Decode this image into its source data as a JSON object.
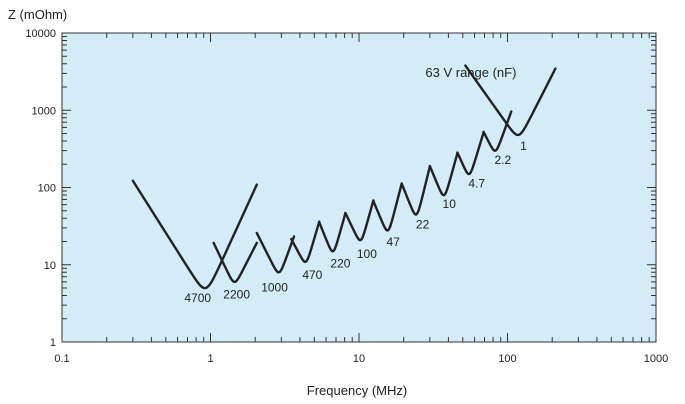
{
  "chart_data": {
    "type": "line",
    "title": "",
    "ylabel": "Z (mOhm)",
    "xlabel": "Frequency (MHz)",
    "annotation": "63 V range (nF)",
    "x_scale": "log",
    "y_scale": "log",
    "xlim": [
      0.1,
      1000
    ],
    "ylim": [
      1,
      10000
    ],
    "x_ticks": [
      {
        "value": 0.1,
        "label": "0.1"
      },
      {
        "value": 1,
        "label": "1"
      },
      {
        "value": 10,
        "label": "10"
      },
      {
        "value": 100,
        "label": "100"
      },
      {
        "value": 1000,
        "label": "1000"
      }
    ],
    "y_ticks": [
      {
        "value": 1,
        "label": "1"
      },
      {
        "value": 10,
        "label": "10"
      },
      {
        "value": 100,
        "label": "100"
      },
      {
        "value": 1000,
        "label": "1000"
      },
      {
        "value": 10000,
        "label": "10000"
      }
    ],
    "grid": false,
    "colors": {
      "plot_background": "#d3ecf7",
      "curve": "#222222"
    },
    "series": [
      {
        "name": "4700",
        "f_start": 0.3,
        "z_start": 155,
        "f_min": 0.93,
        "z_min": 5,
        "f_end": 2.05,
        "z_end": 138
      },
      {
        "name": "2200",
        "f_start": 1.05,
        "z_start": 22,
        "f_min": 1.45,
        "z_min": 6,
        "f_end": 2.05,
        "z_end": 22
      },
      {
        "name": "1000",
        "f_start": 2.05,
        "z_start": 30,
        "f_min": 2.9,
        "z_min": 8,
        "f_end": 3.65,
        "z_end": 27
      },
      {
        "name": "470",
        "f_start": 3.5,
        "z_start": 25,
        "f_min": 4.4,
        "z_min": 11,
        "f_end": 5.4,
        "z_end": 42
      },
      {
        "name": "220",
        "f_start": 5.4,
        "z_start": 42,
        "f_min": 6.7,
        "z_min": 15,
        "f_end": 8.1,
        "z_end": 55
      },
      {
        "name": "100",
        "f_start": 8.1,
        "z_start": 55,
        "f_min": 10.3,
        "z_min": 21,
        "f_end": 12.5,
        "z_end": 80
      },
      {
        "name": "47",
        "f_start": 12.5,
        "z_start": 80,
        "f_min": 15.7,
        "z_min": 28,
        "f_end": 19.4,
        "z_end": 135
      },
      {
        "name": "22",
        "f_start": 19.4,
        "z_start": 135,
        "f_min": 24.4,
        "z_min": 45,
        "f_end": 30.0,
        "z_end": 225
      },
      {
        "name": "10",
        "f_start": 30.0,
        "z_start": 225,
        "f_min": 37.5,
        "z_min": 80,
        "f_end": 46.0,
        "z_end": 330
      },
      {
        "name": "4.7",
        "f_start": 46.0,
        "z_start": 330,
        "f_min": 55.4,
        "z_min": 150,
        "f_end": 69.0,
        "z_end": 600
      },
      {
        "name": "2.2",
        "f_start": 69.0,
        "z_start": 600,
        "f_min": 83.0,
        "z_min": 300,
        "f_end": 106,
        "z_end": 1100
      },
      {
        "name": "1",
        "f_start": 52,
        "z_start": 4500,
        "f_min": 119,
        "z_min": 480,
        "f_end": 210,
        "z_end": 4100
      }
    ],
    "curve_labels": [
      {
        "text": "4700",
        "f": 0.82,
        "z": 3.3
      },
      {
        "text": "2200",
        "f": 1.5,
        "z": 3.65
      },
      {
        "text": "1000",
        "f": 2.7,
        "z": 4.5
      },
      {
        "text": "470",
        "f": 4.85,
        "z": 6.5
      },
      {
        "text": "220",
        "f": 7.5,
        "z": 9.2
      },
      {
        "text": "100",
        "f": 11.3,
        "z": 12.3
      },
      {
        "text": "47",
        "f": 17.0,
        "z": 17.5
      },
      {
        "text": "22",
        "f": 26.8,
        "z": 29.5
      },
      {
        "text": "10",
        "f": 40.5,
        "z": 54
      },
      {
        "text": "4.7",
        "f": 62,
        "z": 100
      },
      {
        "text": "2.2",
        "f": 93,
        "z": 200
      },
      {
        "text": "1",
        "f": 128,
        "z": 305
      }
    ],
    "annotation_position": {
      "f": 28,
      "z": 2700
    }
  }
}
